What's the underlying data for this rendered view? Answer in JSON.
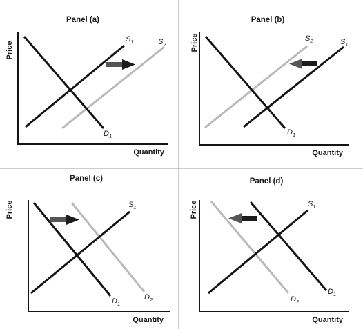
{
  "colors": {
    "original_curve": "#141414",
    "shifted_curve": "#b9b9b9",
    "arrow_body": "#555555",
    "arrow_head": "#1c1c1c",
    "divider": "#9a9a9a"
  },
  "axis_labels": {
    "y": "Price",
    "x": "Quantity"
  },
  "panels": [
    {
      "title": "Panel (a)",
      "curves": [
        {
          "kind": "supply",
          "letter": "S",
          "sub": "1",
          "style": "original"
        },
        {
          "kind": "supply",
          "letter": "S",
          "sub": "2",
          "style": "shifted"
        },
        {
          "kind": "demand",
          "letter": "D",
          "sub": "1",
          "style": "original"
        }
      ],
      "shift_arrow": "right"
    },
    {
      "title": "Panel (b)",
      "curves": [
        {
          "kind": "supply",
          "letter": "S",
          "sub": "1",
          "style": "original"
        },
        {
          "kind": "supply",
          "letter": "S",
          "sub": "2",
          "style": "shifted"
        },
        {
          "kind": "demand",
          "letter": "D",
          "sub": "1",
          "style": "original"
        }
      ],
      "shift_arrow": "left"
    },
    {
      "title": "Panel (c)",
      "curves": [
        {
          "kind": "supply",
          "letter": "S",
          "sub": "1",
          "style": "original"
        },
        {
          "kind": "demand",
          "letter": "D",
          "sub": "1",
          "style": "original"
        },
        {
          "kind": "demand",
          "letter": "D",
          "sub": "2",
          "style": "shifted"
        }
      ],
      "shift_arrow": "right"
    },
    {
      "title": "Panel (d)",
      "curves": [
        {
          "kind": "supply",
          "letter": "S",
          "sub": "1",
          "style": "original"
        },
        {
          "kind": "demand",
          "letter": "D",
          "sub": "1",
          "style": "original"
        },
        {
          "kind": "demand",
          "letter": "D",
          "sub": "2",
          "style": "shifted"
        }
      ],
      "shift_arrow": "left"
    }
  ]
}
